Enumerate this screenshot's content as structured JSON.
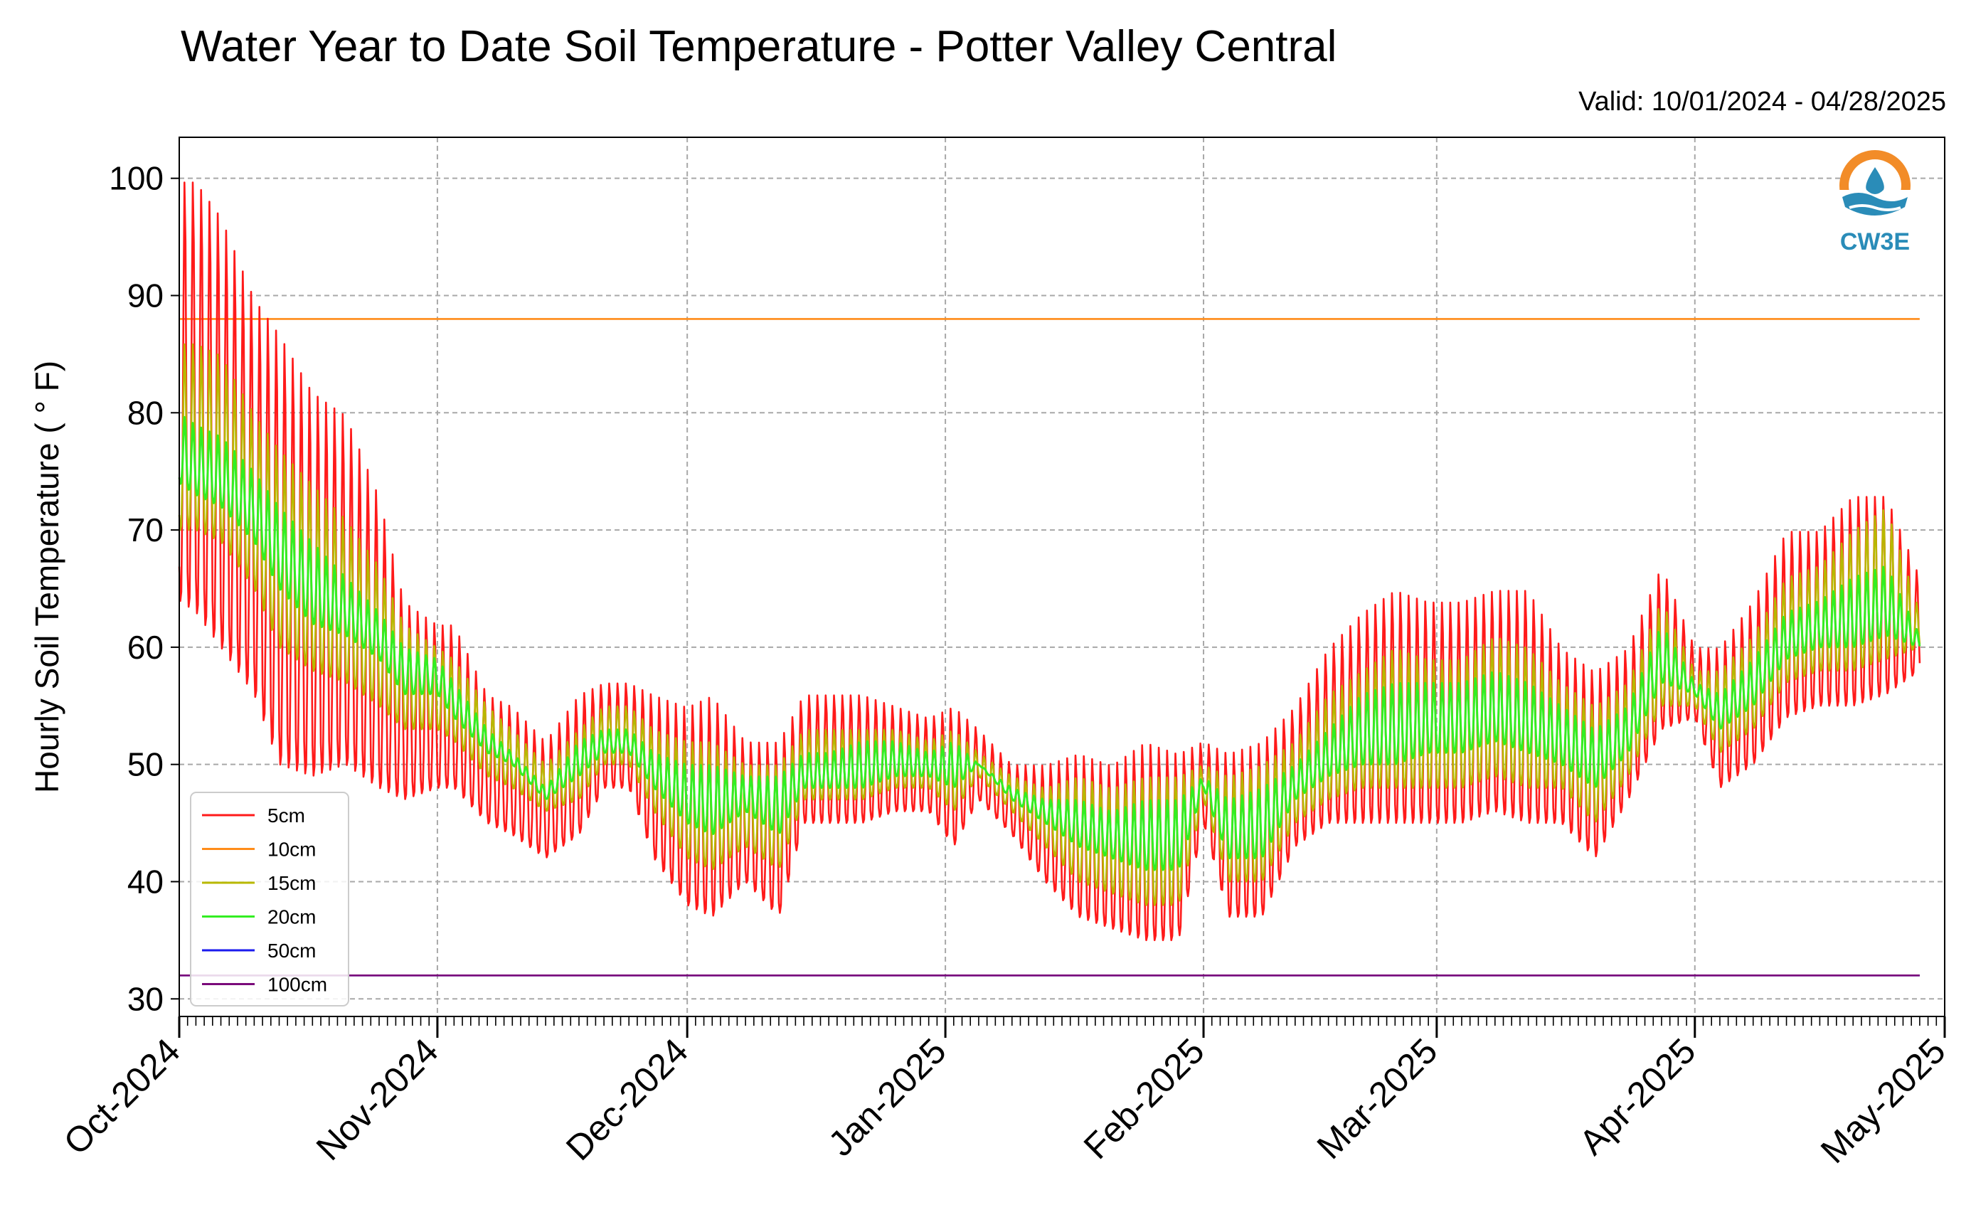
{
  "chart_data": {
    "type": "line",
    "title": "Water Year to Date Soil Temperature - Potter Valley Central",
    "subtitle": "Valid: 10/01/2024 - 04/28/2025",
    "ylabel": "Hourly Soil Temperature ( ° F)",
    "xlabel": "",
    "ylim": [
      28.5,
      103.5
    ],
    "xlim": [
      "2024-10-01",
      "2025-05-01"
    ],
    "yticks": [
      30,
      40,
      50,
      60,
      70,
      80,
      90,
      100
    ],
    "xticks": [
      {
        "date": "2024-10-01",
        "label": "Oct-2024"
      },
      {
        "date": "2024-11-01",
        "label": "Nov-2024"
      },
      {
        "date": "2024-12-01",
        "label": "Dec-2024"
      },
      {
        "date": "2025-01-01",
        "label": "Jan-2025"
      },
      {
        "date": "2025-02-01",
        "label": "Feb-2025"
      },
      {
        "date": "2025-03-01",
        "label": "Mar-2025"
      },
      {
        "date": "2025-04-01",
        "label": "Apr-2025"
      },
      {
        "date": "2025-05-01",
        "label": "May-2025"
      }
    ],
    "grid": true,
    "legend_position": "bottom-left",
    "logo_text": "CW3E",
    "series": [
      {
        "name": "5cm",
        "color": "#ff1a1a",
        "kind": "daily-range",
        "x": [
          "2024-10-01",
          "2024-10-03",
          "2024-10-06",
          "2024-10-10",
          "2024-10-13",
          "2024-10-17",
          "2024-10-21",
          "2024-10-25",
          "2024-10-28",
          "2024-11-01",
          "2024-11-03",
          "2024-11-07",
          "2024-11-10",
          "2024-11-14",
          "2024-11-18",
          "2024-11-21",
          "2024-11-24",
          "2024-11-27",
          "2024-12-01",
          "2024-12-04",
          "2024-12-08",
          "2024-12-12",
          "2024-12-15",
          "2024-12-18",
          "2024-12-22",
          "2024-12-26",
          "2024-12-30",
          "2025-01-02",
          "2025-01-05",
          "2025-01-09",
          "2025-01-13",
          "2025-01-17",
          "2025-01-21",
          "2025-01-25",
          "2025-01-29",
          "2025-02-01",
          "2025-02-04",
          "2025-02-08",
          "2025-02-12",
          "2025-02-16",
          "2025-02-20",
          "2025-02-24",
          "2025-02-28",
          "2025-03-04",
          "2025-03-08",
          "2025-03-12",
          "2025-03-16",
          "2025-03-20",
          "2025-03-24",
          "2025-03-28",
          "2025-04-01",
          "2025-04-04",
          "2025-04-08",
          "2025-04-12",
          "2025-04-16",
          "2025-04-20",
          "2025-04-24",
          "2025-04-28"
        ],
        "max": [
          100,
          100,
          97,
          90,
          87,
          82,
          80,
          73,
          64,
          62,
          62,
          56,
          55,
          52,
          56,
          57,
          57,
          56,
          55,
          56,
          52,
          52,
          56,
          56,
          56,
          55,
          54,
          55,
          53,
          50,
          50,
          51,
          50,
          52,
          51,
          52,
          51,
          52,
          55,
          60,
          63,
          65,
          64,
          64,
          65,
          65,
          60,
          58,
          60,
          67,
          60,
          60,
          64,
          70,
          70,
          73,
          73,
          66
        ],
        "min": [
          64,
          63,
          60,
          56,
          50,
          49,
          50,
          48,
          47,
          48,
          48,
          45,
          44,
          42,
          44,
          48,
          48,
          42,
          38,
          37,
          40,
          37,
          45,
          45,
          45,
          46,
          46,
          43,
          47,
          44,
          40,
          37,
          36,
          35,
          35,
          45,
          37,
          37,
          43,
          45,
          45,
          45,
          45,
          45,
          46,
          45,
          45,
          42,
          47,
          53,
          54,
          48,
          50,
          54,
          55,
          55,
          56,
          58
        ]
      },
      {
        "name": "10cm",
        "color": "#ff8c1a",
        "kind": "constant",
        "x": [
          "2024-10-01",
          "2025-04-28"
        ],
        "values": [
          88,
          88
        ]
      },
      {
        "name": "15cm",
        "color": "#b8b800",
        "kind": "daily-range",
        "x": [
          "2024-10-01",
          "2024-10-03",
          "2024-10-06",
          "2024-10-10",
          "2024-10-13",
          "2024-10-17",
          "2024-10-21",
          "2024-10-25",
          "2024-10-28",
          "2024-11-01",
          "2024-11-03",
          "2024-11-07",
          "2024-11-10",
          "2024-11-14",
          "2024-11-18",
          "2024-11-21",
          "2024-11-24",
          "2024-11-27",
          "2024-12-01",
          "2024-12-04",
          "2024-12-08",
          "2024-12-12",
          "2024-12-15",
          "2024-12-18",
          "2024-12-22",
          "2024-12-26",
          "2024-12-30",
          "2025-01-02",
          "2025-01-05",
          "2025-01-09",
          "2025-01-13",
          "2025-01-17",
          "2025-01-21",
          "2025-01-25",
          "2025-01-29",
          "2025-02-01",
          "2025-02-04",
          "2025-02-08",
          "2025-02-12",
          "2025-02-16",
          "2025-02-20",
          "2025-02-24",
          "2025-02-28",
          "2025-03-04",
          "2025-03-08",
          "2025-03-12",
          "2025-03-16",
          "2025-03-20",
          "2025-03-24",
          "2025-03-28",
          "2025-04-01",
          "2025-04-04",
          "2025-04-08",
          "2025-04-12",
          "2025-04-16",
          "2025-04-20",
          "2025-04-24",
          "2025-04-28"
        ],
        "max": [
          86,
          86,
          85,
          80,
          77,
          74,
          71,
          67,
          62,
          60,
          59,
          55,
          53,
          50,
          53,
          55,
          55,
          53,
          52,
          52,
          50,
          50,
          53,
          53,
          53,
          53,
          52,
          53,
          51,
          49,
          48,
          49,
          48,
          49,
          49,
          50,
          49,
          50,
          52,
          56,
          58,
          60,
          59,
          59,
          61,
          60,
          57,
          55,
          57,
          64,
          58,
          58,
          61,
          66,
          67,
          70,
          72,
          63
        ],
        "min": [
          70,
          70,
          69,
          65,
          60,
          58,
          57,
          55,
          53,
          53,
          52,
          49,
          48,
          46,
          47,
          50,
          50,
          46,
          42,
          41,
          43,
          41,
          47,
          47,
          47,
          48,
          48,
          46,
          49,
          46,
          43,
          40,
          39,
          38,
          38,
          47,
          40,
          40,
          45,
          47,
          48,
          48,
          48,
          48,
          49,
          48,
          48,
          45,
          49,
          55,
          55,
          51,
          53,
          57,
          58,
          58,
          59,
          60
        ]
      },
      {
        "name": "20cm",
        "color": "#33ee22",
        "kind": "daily-range",
        "x": [
          "2024-10-01",
          "2024-10-03",
          "2024-10-06",
          "2024-10-10",
          "2024-10-13",
          "2024-10-17",
          "2024-10-21",
          "2024-10-25",
          "2024-10-28",
          "2024-11-01",
          "2024-11-03",
          "2024-11-07",
          "2024-11-10",
          "2024-11-14",
          "2024-11-18",
          "2024-11-21",
          "2024-11-24",
          "2024-11-27",
          "2024-12-01",
          "2024-12-04",
          "2024-12-08",
          "2024-12-12",
          "2024-12-15",
          "2024-12-18",
          "2024-12-22",
          "2024-12-26",
          "2024-12-30",
          "2025-01-02",
          "2025-01-05",
          "2025-01-09",
          "2025-01-13",
          "2025-01-17",
          "2025-01-21",
          "2025-01-25",
          "2025-01-29",
          "2025-02-01",
          "2025-02-04",
          "2025-02-08",
          "2025-02-12",
          "2025-02-16",
          "2025-02-20",
          "2025-02-24",
          "2025-02-28",
          "2025-03-04",
          "2025-03-08",
          "2025-03-12",
          "2025-03-16",
          "2025-03-20",
          "2025-03-24",
          "2025-03-28",
          "2025-04-01",
          "2025-04-04",
          "2025-04-08",
          "2025-04-12",
          "2025-04-16",
          "2025-04-20",
          "2025-04-24",
          "2025-04-28"
        ],
        "max": [
          80,
          79,
          78,
          75,
          72,
          69,
          66,
          63,
          60,
          59,
          57,
          53,
          51,
          48,
          52,
          53,
          53,
          51,
          50,
          50,
          49,
          49,
          51,
          51,
          52,
          52,
          51,
          52,
          50,
          48,
          47,
          47,
          46,
          47,
          47,
          49,
          47,
          48,
          50,
          53,
          56,
          57,
          57,
          57,
          58,
          57,
          55,
          53,
          55,
          62,
          57,
          56,
          59,
          63,
          64,
          66,
          67,
          61
        ],
        "min": [
          74,
          73,
          72,
          69,
          65,
          62,
          61,
          59,
          56,
          56,
          54,
          51,
          50,
          47,
          49,
          51,
          51,
          48,
          45,
          44,
          46,
          44,
          48,
          48,
          48,
          49,
          49,
          48,
          50,
          47,
          45,
          43,
          42,
          41,
          41,
          48,
          42,
          42,
          47,
          49,
          50,
          50,
          51,
          51,
          52,
          51,
          50,
          48,
          51,
          57,
          56,
          53,
          55,
          59,
          60,
          60,
          61,
          60
        ]
      },
      {
        "name": "50cm",
        "color": "#1a1aee",
        "kind": "constant",
        "x": [
          "2024-10-01",
          "2025-04-28"
        ],
        "values": [
          32,
          32
        ]
      },
      {
        "name": "100cm",
        "color": "#7a0a7a",
        "kind": "constant",
        "x": [
          "2024-10-01",
          "2025-04-28"
        ],
        "values": [
          32,
          32
        ]
      }
    ]
  }
}
